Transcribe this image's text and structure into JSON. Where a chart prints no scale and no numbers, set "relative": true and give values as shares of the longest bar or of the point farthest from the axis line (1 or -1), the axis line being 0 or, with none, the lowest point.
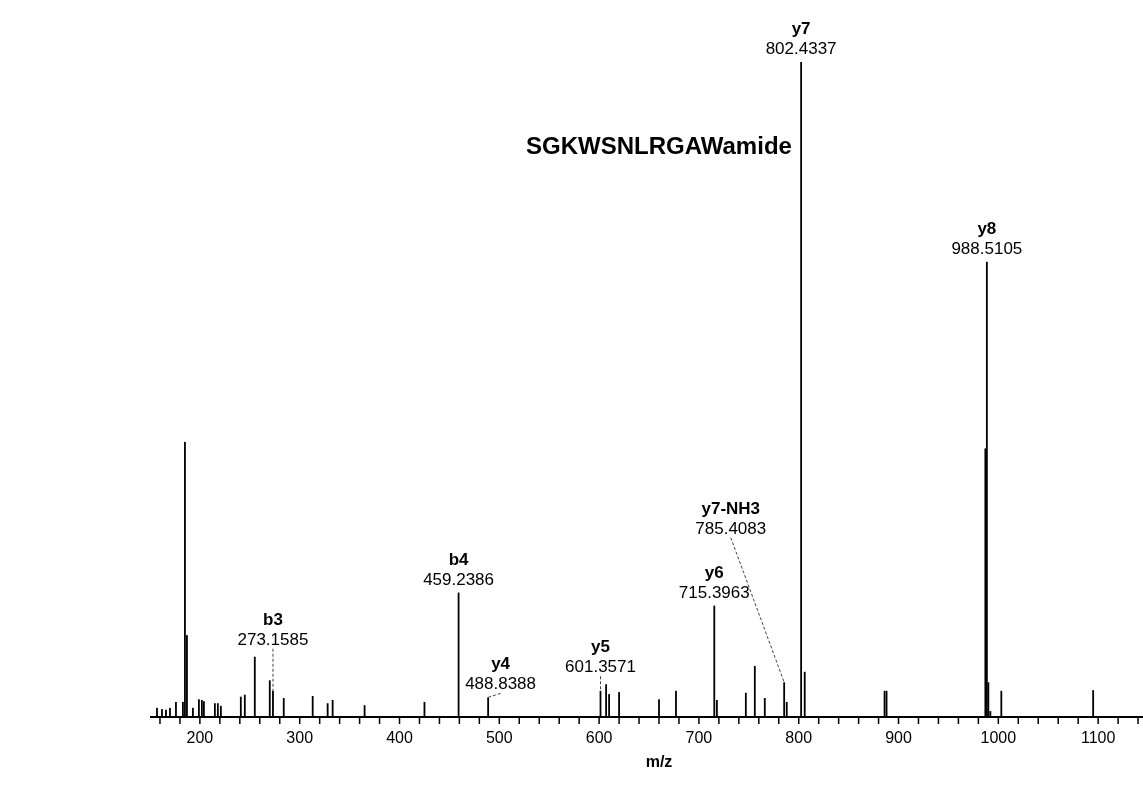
{
  "chart_data": {
    "type": "bar",
    "relative": true,
    "title": "SGKWSNLRGAWamide",
    "xlabel": "m/z",
    "color": "#000000",
    "x": [
      157,
      162,
      166,
      170,
      176,
      183,
      185,
      187,
      193,
      199,
      202,
      204,
      215,
      218,
      221,
      241,
      245,
      255,
      270,
      273.2,
      284,
      313,
      328,
      333,
      365,
      425,
      459.2,
      488.8,
      601.4,
      607,
      610,
      620,
      660,
      677,
      715.4,
      718,
      747,
      756,
      766,
      785.4,
      788,
      802.4,
      806,
      886,
      888,
      987,
      988.5,
      990,
      992,
      1003,
      1095
    ],
    "values": [
      0.014,
      0.012,
      0.011,
      0.014,
      0.023,
      0.023,
      0.42,
      0.125,
      0.014,
      0.027,
      0.026,
      0.024,
      0.021,
      0.021,
      0.017,
      0.031,
      0.034,
      0.092,
      0.056,
      0.04,
      0.029,
      0.032,
      0.021,
      0.026,
      0.018,
      0.023,
      0.19,
      0.03,
      0.04,
      0.05,
      0.035,
      0.038,
      0.027,
      0.04,
      0.17,
      0.026,
      0.037,
      0.078,
      0.029,
      0.053,
      0.023,
      1.0,
      0.069,
      0.04,
      0.04,
      0.41,
      0.695,
      0.053,
      0.009,
      0.04,
      0.041
    ],
    "xlim": [
      150,
      1170
    ],
    "xticks": [
      {
        "value": 160,
        "label": null
      },
      {
        "value": 180,
        "label": null
      },
      200,
      {
        "value": 220,
        "label": null
      },
      {
        "value": 240,
        "label": null
      },
      {
        "value": 260,
        "label": null
      },
      {
        "value": 280,
        "label": null
      },
      300,
      {
        "value": 320,
        "label": null
      },
      {
        "value": 340,
        "label": null
      },
      {
        "value": 360,
        "label": null
      },
      {
        "value": 380,
        "label": null
      },
      400,
      {
        "value": 420,
        "label": null
      },
      {
        "value": 440,
        "label": null
      },
      {
        "value": 460,
        "label": null
      },
      {
        "value": 480,
        "label": null
      },
      500,
      {
        "value": 520,
        "label": null
      },
      {
        "value": 540,
        "label": null
      },
      {
        "value": 560,
        "label": null
      },
      {
        "value": 580,
        "label": null
      },
      600,
      {
        "value": 620,
        "label": null
      },
      {
        "value": 640,
        "label": null
      },
      {
        "value": 660,
        "label": null
      },
      {
        "value": 680,
        "label": null
      },
      700,
      {
        "value": 720,
        "label": null
      },
      {
        "value": 740,
        "label": null
      },
      {
        "value": 760,
        "label": null
      },
      {
        "value": 780,
        "label": null
      },
      800,
      {
        "value": 820,
        "label": null
      },
      {
        "value": 840,
        "label": null
      },
      {
        "value": 860,
        "label": null
      },
      {
        "value": 880,
        "label": null
      },
      900,
      {
        "value": 920,
        "label": null
      },
      {
        "value": 940,
        "label": null
      },
      {
        "value": 960,
        "label": null
      },
      {
        "value": 980,
        "label": null
      },
      1000,
      {
        "value": 1020,
        "label": null
      },
      {
        "value": 1040,
        "label": null
      },
      {
        "value": 1060,
        "label": null
      },
      {
        "value": 1080,
        "label": null
      },
      1100,
      {
        "value": 1120,
        "label": null
      },
      {
        "value": 1140,
        "label": null
      },
      {
        "value": 1160,
        "label": null
      }
    ],
    "annotations": [
      {
        "text": "b3\n273.1585",
        "x": 273.2,
        "y": 0.04
      },
      {
        "text": "b4\n459.2386",
        "x": 459.2,
        "y": 0.19
      },
      {
        "text": "y4\n488.8388",
        "x": 488.8,
        "y": 0.03
      },
      {
        "text": "y5\n601.3571",
        "x": 601.4,
        "y": 0.04
      },
      {
        "text": "y6\n715.3963",
        "x": 715.4,
        "y": 0.17
      },
      {
        "text": "y7-NH3\n785.4083",
        "x": 785.4,
        "y": 0.053
      },
      {
        "text": "y7\n802.4337",
        "x": 802.4,
        "y": 1.0
      },
      {
        "text": "y8\n988.5105",
        "x": 988.5,
        "y": 0.695
      }
    ]
  }
}
